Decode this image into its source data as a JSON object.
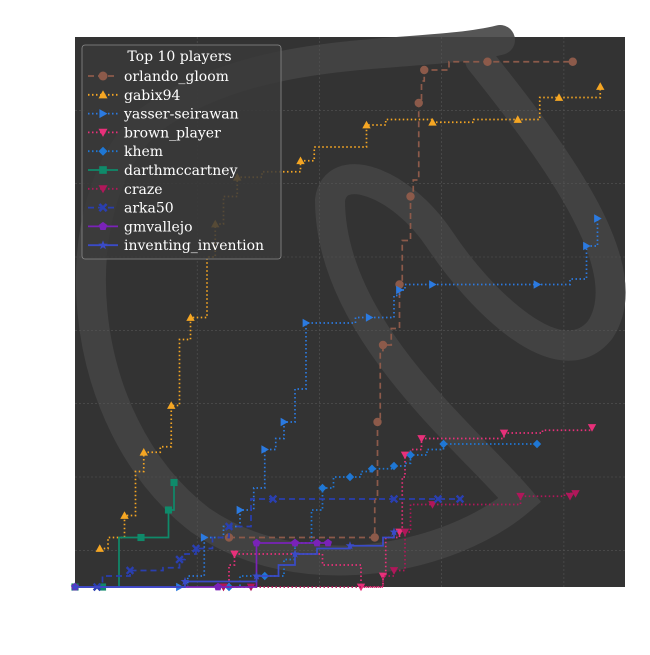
{
  "chart_data": {
    "type": "line",
    "title": "",
    "xlabel": "",
    "ylabel": "",
    "xlim": [
      0,
      1
    ],
    "ylim": [
      0,
      1
    ],
    "grid": true,
    "background": "#333333",
    "legend": {
      "title": "Top 10 players",
      "placement": "top-left"
    },
    "series": [
      {
        "name": "orlando_gloom",
        "color": "#8c5a4a",
        "linestyle": "dashed",
        "marker": "circle",
        "points": [
          [
            0.28,
            0.09
          ],
          [
            0.4,
            0.09
          ],
          [
            0.545,
            0.09
          ],
          [
            0.545,
            0.16
          ],
          [
            0.55,
            0.3
          ],
          [
            0.555,
            0.43
          ],
          [
            0.56,
            0.44
          ],
          [
            0.575,
            0.47
          ],
          [
            0.59,
            0.55
          ],
          [
            0.595,
            0.63
          ],
          [
            0.61,
            0.71
          ],
          [
            0.615,
            0.74
          ],
          [
            0.625,
            0.88
          ],
          [
            0.63,
            0.92
          ],
          [
            0.635,
            0.94
          ],
          [
            0.68,
            0.955
          ],
          [
            0.75,
            0.955
          ],
          [
            0.82,
            0.955
          ],
          [
            0.905,
            0.955
          ]
        ]
      },
      {
        "name": "gabix94",
        "color": "#f5a623",
        "linestyle": "dotted",
        "marker": "triangle-up",
        "points": [
          [
            0.045,
            0.07
          ],
          [
            0.06,
            0.09
          ],
          [
            0.09,
            0.13
          ],
          [
            0.11,
            0.21
          ],
          [
            0.125,
            0.245
          ],
          [
            0.155,
            0.255
          ],
          [
            0.175,
            0.33
          ],
          [
            0.19,
            0.45
          ],
          [
            0.21,
            0.49
          ],
          [
            0.24,
            0.6
          ],
          [
            0.255,
            0.66
          ],
          [
            0.27,
            0.71
          ],
          [
            0.295,
            0.745
          ],
          [
            0.34,
            0.755
          ],
          [
            0.41,
            0.775
          ],
          [
            0.435,
            0.8
          ],
          [
            0.53,
            0.84
          ],
          [
            0.565,
            0.85
          ],
          [
            0.65,
            0.845
          ],
          [
            0.725,
            0.85
          ],
          [
            0.805,
            0.85
          ],
          [
            0.845,
            0.89
          ],
          [
            0.88,
            0.89
          ],
          [
            0.955,
            0.91
          ]
        ]
      },
      {
        "name": "yasser-seirawan",
        "color": "#2b7ae0",
        "linestyle": "dotted",
        "marker": "triangle-right",
        "points": [
          [
            0.19,
            0.0
          ],
          [
            0.205,
            0.02
          ],
          [
            0.235,
            0.09
          ],
          [
            0.27,
            0.11
          ],
          [
            0.3,
            0.14
          ],
          [
            0.325,
            0.18
          ],
          [
            0.345,
            0.25
          ],
          [
            0.365,
            0.27
          ],
          [
            0.38,
            0.3
          ],
          [
            0.4,
            0.36
          ],
          [
            0.42,
            0.48
          ],
          [
            0.51,
            0.49
          ],
          [
            0.535,
            0.49
          ],
          [
            0.58,
            0.53
          ],
          [
            0.59,
            0.54
          ],
          [
            0.6,
            0.55
          ],
          [
            0.65,
            0.55
          ],
          [
            0.745,
            0.55
          ],
          [
            0.84,
            0.55
          ],
          [
            0.9,
            0.56
          ],
          [
            0.93,
            0.62
          ],
          [
            0.95,
            0.67
          ]
        ]
      },
      {
        "name": "brown_player",
        "color": "#e8307a",
        "linestyle": "dotted",
        "marker": "triangle-down",
        "points": [
          [
            0.27,
            0.0
          ],
          [
            0.28,
            0.04
          ],
          [
            0.29,
            0.06
          ],
          [
            0.45,
            0.04
          ],
          [
            0.52,
            0.0
          ],
          [
            0.54,
            0.0
          ],
          [
            0.56,
            0.02
          ],
          [
            0.565,
            0.09
          ],
          [
            0.59,
            0.1
          ],
          [
            0.595,
            0.2
          ],
          [
            0.6,
            0.24
          ],
          [
            0.61,
            0.25
          ],
          [
            0.63,
            0.27
          ],
          [
            0.7,
            0.27
          ],
          [
            0.78,
            0.28
          ],
          [
            0.85,
            0.285
          ],
          [
            0.94,
            0.29
          ]
        ]
      },
      {
        "name": "khem",
        "color": "#1f77d4",
        "linestyle": "dotted",
        "marker": "diamond",
        "points": [
          [
            0.28,
            0.0
          ],
          [
            0.3,
            0.02
          ],
          [
            0.345,
            0.02
          ],
          [
            0.38,
            0.05
          ],
          [
            0.4,
            0.08
          ],
          [
            0.43,
            0.14
          ],
          [
            0.45,
            0.18
          ],
          [
            0.47,
            0.2
          ],
          [
            0.5,
            0.2
          ],
          [
            0.52,
            0.21
          ],
          [
            0.54,
            0.215
          ],
          [
            0.56,
            0.215
          ],
          [
            0.58,
            0.22
          ],
          [
            0.6,
            0.225
          ],
          [
            0.61,
            0.24
          ],
          [
            0.64,
            0.25
          ],
          [
            0.67,
            0.26
          ],
          [
            0.74,
            0.26
          ],
          [
            0.84,
            0.26
          ]
        ]
      },
      {
        "name": "darthmccartney",
        "color": "#0f8a6a",
        "linestyle": "solid",
        "marker": "square",
        "points": [
          [
            0.0,
            0.0
          ],
          [
            0.03,
            0.0
          ],
          [
            0.05,
            0.0
          ],
          [
            0.08,
            0.09
          ],
          [
            0.12,
            0.09
          ],
          [
            0.155,
            0.09
          ],
          [
            0.17,
            0.14
          ],
          [
            0.18,
            0.19
          ]
        ]
      },
      {
        "name": "craze",
        "color": "#b0175a",
        "linestyle": "dotted",
        "marker": "triangle-down",
        "points": [
          [
            0.27,
            0.0
          ],
          [
            0.28,
            0.0
          ],
          [
            0.32,
            0.0
          ],
          [
            0.56,
            0.02
          ],
          [
            0.58,
            0.03
          ],
          [
            0.6,
            0.06
          ],
          [
            0.6,
            0.1
          ],
          [
            0.61,
            0.15
          ],
          [
            0.65,
            0.15
          ],
          [
            0.74,
            0.15
          ],
          [
            0.81,
            0.165
          ],
          [
            0.89,
            0.17
          ],
          [
            0.91,
            0.17
          ],
          [
            0.9,
            0.165
          ]
        ]
      },
      {
        "name": "arka50",
        "color": "#2a3fb0",
        "linestyle": "dashed",
        "marker": "x",
        "points": [
          [
            0.04,
            0.0
          ],
          [
            0.05,
            0.02
          ],
          [
            0.1,
            0.03
          ],
          [
            0.16,
            0.035
          ],
          [
            0.19,
            0.05
          ],
          [
            0.2,
            0.06
          ],
          [
            0.22,
            0.07
          ],
          [
            0.25,
            0.09
          ],
          [
            0.28,
            0.11
          ],
          [
            0.32,
            0.16
          ],
          [
            0.36,
            0.16
          ],
          [
            0.5,
            0.16
          ],
          [
            0.58,
            0.16
          ],
          [
            0.6,
            0.16
          ],
          [
            0.66,
            0.16
          ],
          [
            0.7,
            0.16
          ]
        ]
      },
      {
        "name": "gmvallejo",
        "color": "#7a22b8",
        "linestyle": "solid",
        "marker": "pentagon",
        "points": [
          [
            0.0,
            0.0
          ],
          [
            0.15,
            0.0
          ],
          [
            0.26,
            0.0
          ],
          [
            0.33,
            0.0
          ],
          [
            0.33,
            0.08
          ],
          [
            0.34,
            0.08
          ],
          [
            0.4,
            0.08
          ],
          [
            0.42,
            0.08
          ],
          [
            0.44,
            0.08
          ],
          [
            0.46,
            0.08
          ]
        ]
      },
      {
        "name": "inventing_invention",
        "color": "#3a4bc8",
        "linestyle": "solid",
        "marker": "star",
        "points": [
          [
            0.0,
            0.0
          ],
          [
            0.12,
            0.0
          ],
          [
            0.2,
            0.01
          ],
          [
            0.27,
            0.01
          ],
          [
            0.33,
            0.02
          ],
          [
            0.37,
            0.04
          ],
          [
            0.4,
            0.06
          ],
          [
            0.44,
            0.07
          ],
          [
            0.5,
            0.075
          ],
          [
            0.56,
            0.09
          ],
          [
            0.58,
            0.1
          ]
        ]
      }
    ]
  }
}
